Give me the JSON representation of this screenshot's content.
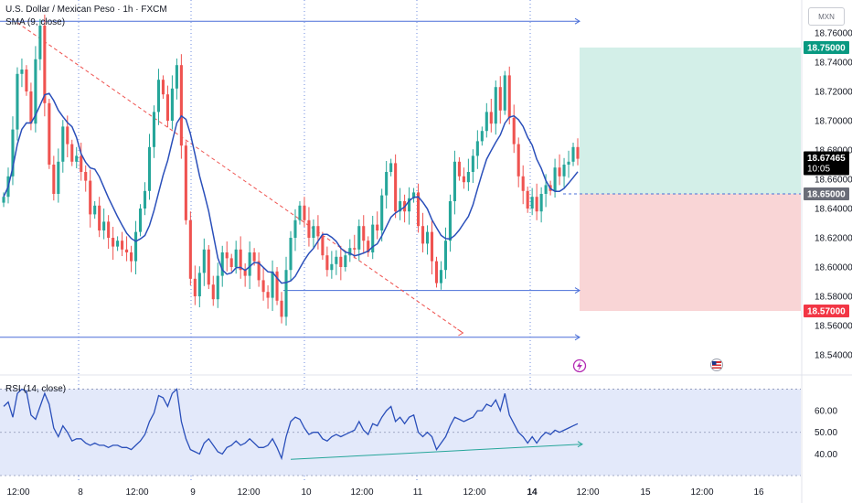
{
  "header": {
    "symbol_title": "U.S. Dollar / Mexican Peso · 1h · FXCM",
    "sma_label": "SMA (9, close)",
    "currency_button": "MXN"
  },
  "rsi": {
    "label": "RSI (14, close)"
  },
  "colors": {
    "up": "#26a69a",
    "down": "#ef5350",
    "sma": "#2a4fba",
    "rsi": "#2a4fba",
    "profit_zone": "#d3efe8",
    "loss_zone": "#f9d5d6",
    "hline": "#4a6fd8",
    "trend": "#ef5350",
    "rsi_trend": "#26a69a",
    "rsi_band": "#e3e9fa"
  },
  "chart_data": [
    {
      "type": "candlestick",
      "title": "U.S. Dollar / Mexican Peso · 1h · FXCM",
      "ylim": [
        18.53,
        18.775
      ],
      "y_ticks": [
        "18.76000",
        "18.74000",
        "18.72000",
        "18.70000",
        "18.68000",
        "18.66000",
        "18.64000",
        "18.62000",
        "18.60000",
        "18.58000",
        "18.56000",
        "18.54000"
      ],
      "x_ticks": [
        "12:00",
        "8",
        "12:00",
        "9",
        "12:00",
        "10",
        "12:00",
        "11",
        "12:00",
        "14",
        "12:00",
        "15",
        "12:00",
        "16"
      ],
      "price_labels": {
        "take_profit": "18.75000",
        "current": "18.67465",
        "countdown": "10:05",
        "entry": "18.65000",
        "stop_loss": "18.57000"
      },
      "levels": {
        "take_profit": 18.75,
        "entry": 18.65,
        "stop_loss": 18.57,
        "current": 18.67465,
        "resistance": 18.768,
        "support_mid": 18.584,
        "support_low": 18.552
      },
      "trendline": {
        "from": [
          3,
          18.767
        ],
        "to": [
          100,
          18.555
        ]
      },
      "closes": [
        18.648,
        18.662,
        18.694,
        18.732,
        18.735,
        18.72,
        18.698,
        18.742,
        18.765,
        18.712,
        18.67,
        18.65,
        18.672,
        18.696,
        18.684,
        18.672,
        18.676,
        18.665,
        18.659,
        18.636,
        18.642,
        18.625,
        18.631,
        18.62,
        18.614,
        18.618,
        18.612,
        18.61,
        18.604,
        18.624,
        18.64,
        18.652,
        18.682,
        18.706,
        18.728,
        18.718,
        18.7,
        18.722,
        18.738,
        18.683,
        18.632,
        18.592,
        18.58,
        18.596,
        18.612,
        18.588,
        18.578,
        18.594,
        18.61,
        18.606,
        18.6,
        18.612,
        18.598,
        18.594,
        18.61,
        18.604,
        18.591,
        18.583,
        18.579,
        18.597,
        18.577,
        18.566,
        18.598,
        18.62,
        18.632,
        18.642,
        18.632,
        18.62,
        18.628,
        18.621,
        18.608,
        18.598,
        18.602,
        18.607,
        18.6,
        18.608,
        18.613,
        18.612,
        18.628,
        18.618,
        18.61,
        18.629,
        18.625,
        18.649,
        18.665,
        18.671,
        18.638,
        18.645,
        18.638,
        18.647,
        18.651,
        18.628,
        18.616,
        18.624,
        18.604,
        18.589,
        18.598,
        18.618,
        18.645,
        18.672,
        18.662,
        18.658,
        18.665,
        18.676,
        18.686,
        18.693,
        18.706,
        18.698,
        18.723,
        18.707,
        18.731,
        18.702,
        18.684,
        18.662,
        18.652,
        18.64,
        18.648,
        18.638,
        18.65,
        18.656,
        18.652,
        18.668,
        18.662,
        18.67,
        18.672,
        18.682,
        18.674
      ],
      "series": [
        {
          "name": "SMA (9, close)"
        }
      ]
    },
    {
      "type": "line",
      "title": "RSI (14, close)",
      "ylim": [
        30,
        74
      ],
      "y_ticks": [
        "60.00",
        "50.00",
        "40.00"
      ],
      "bands": [
        30,
        50,
        70
      ],
      "values": [
        62,
        64,
        57,
        68,
        70,
        69,
        58,
        56,
        62,
        68,
        63,
        52,
        48,
        53,
        50,
        46,
        47,
        47,
        45,
        44,
        45,
        44,
        44,
        43,
        44,
        44,
        43,
        43,
        42,
        44,
        46,
        49,
        55,
        59,
        67,
        66,
        62,
        68,
        70,
        55,
        47,
        42,
        41,
        40,
        45,
        47,
        44,
        41,
        40,
        43,
        44,
        46,
        44,
        45,
        47,
        45,
        43,
        43,
        44,
        47,
        43,
        38,
        48,
        55,
        57,
        56,
        52,
        49,
        50,
        50,
        47,
        46,
        48,
        49,
        48,
        49,
        50,
        51,
        55,
        51,
        49,
        54,
        53,
        57,
        60,
        62,
        55,
        57,
        54,
        57,
        58,
        50,
        48,
        50,
        48,
        42,
        45,
        48,
        53,
        57,
        56,
        55,
        56,
        57,
        60,
        60,
        63,
        62,
        65,
        60,
        68,
        58,
        54,
        50,
        48,
        45,
        48,
        45,
        48,
        50,
        49,
        51,
        50,
        51,
        52,
        53,
        54
      ],
      "trend": {
        "from": [
          63,
          37.5
        ],
        "to": [
          127,
          44.5
        ]
      }
    }
  ]
}
